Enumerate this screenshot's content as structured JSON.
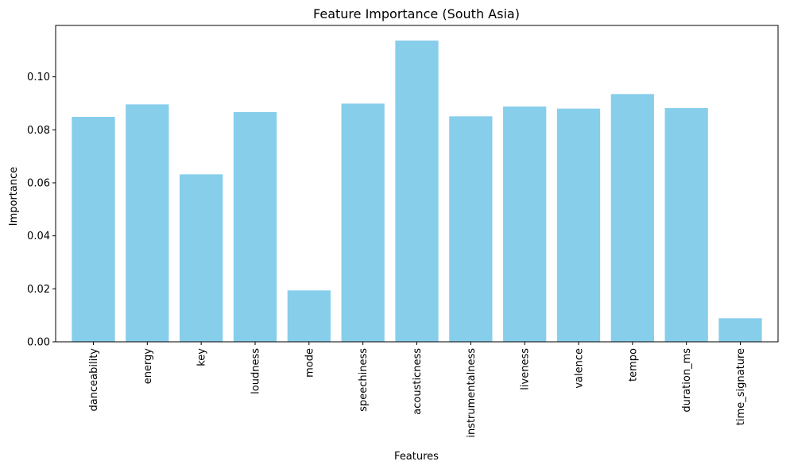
{
  "chart_data": {
    "type": "bar",
    "title": "Feature Importance (South Asia)",
    "xlabel": "Features",
    "ylabel": "Importance",
    "categories": [
      "danceability",
      "energy",
      "key",
      "loudness",
      "mode",
      "speechiness",
      "acousticness",
      "instrumentalness",
      "liveness",
      "valence",
      "tempo",
      "duration_ms",
      "time_signature"
    ],
    "values": [
      0.0849,
      0.0896,
      0.0632,
      0.0867,
      0.0194,
      0.0899,
      0.1137,
      0.0851,
      0.0888,
      0.088,
      0.0935,
      0.0882,
      0.0089
    ],
    "ylim": [
      0,
      0.1194
    ],
    "yticks": [
      0.0,
      0.02,
      0.04,
      0.06,
      0.08,
      0.1
    ],
    "ytick_labels": [
      "0.00",
      "0.02",
      "0.04",
      "0.06",
      "0.08",
      "0.10"
    ],
    "bar_color": "#87ceeb",
    "grid": false,
    "legend": "none"
  }
}
